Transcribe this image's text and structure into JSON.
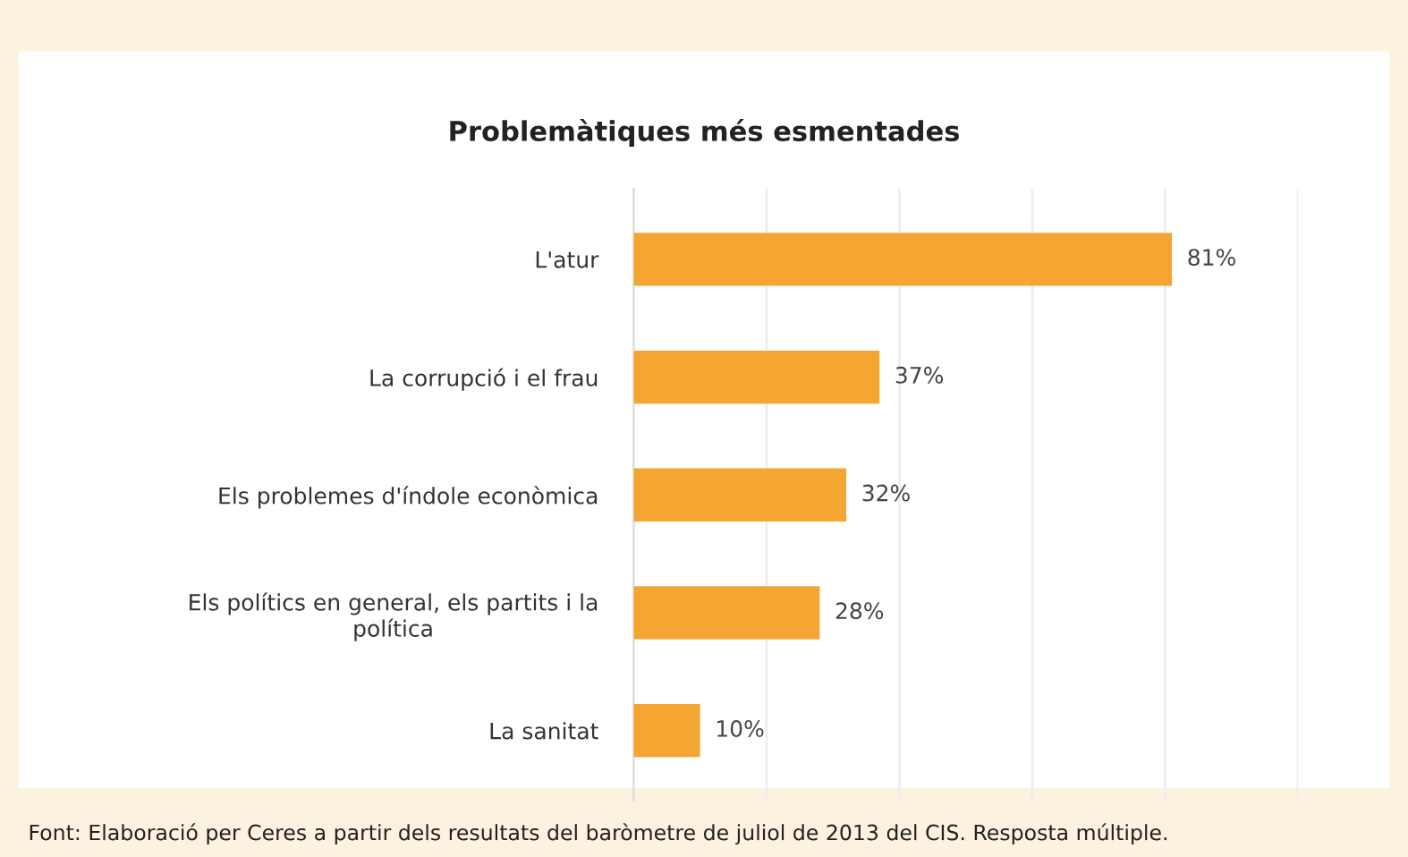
{
  "chart_data": {
    "type": "bar",
    "orientation": "horizontal",
    "title": "Problemàtiques més esmentades",
    "categories": [
      "L'atur",
      "La corrupció i el frau",
      "Els problemes d'índole econòmica",
      "Els polítics en general, els partits i la\npolítica",
      "La sanitat"
    ],
    "values": [
      81,
      37,
      32,
      28,
      10
    ],
    "value_labels": [
      "81%",
      "37%",
      "32%",
      "28%",
      "10%"
    ],
    "color": "#f5a531",
    "xlim": [
      0,
      100
    ],
    "xticks": [
      {
        "value": 0,
        "label": null
      },
      {
        "value": 20,
        "label": null
      },
      {
        "value": 40,
        "label": null
      },
      {
        "value": 60,
        "label": null
      },
      {
        "value": 80,
        "label": null
      },
      {
        "value": 100,
        "label": null
      }
    ],
    "grid": "x",
    "tick_labels": "y",
    "legend": false,
    "annotations": [
      "Font: Elaboració per Ceres a partir dels resultats del baròmetre de juliol de 2013 del CIS. Resposta múltiple."
    ]
  }
}
